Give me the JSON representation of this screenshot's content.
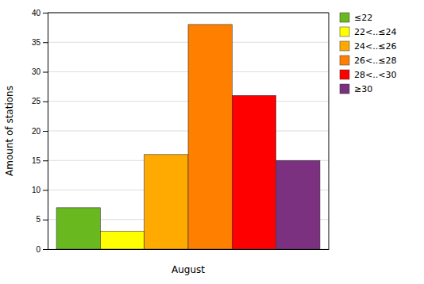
{
  "chart_data": {
    "type": "bar",
    "xlabel": "August",
    "ylabel": "Amount of stations",
    "categories": [
      "≤22",
      "22<..≤24",
      "24<..≤26",
      "26<..≤28",
      "28<..<30",
      "≥30"
    ],
    "values": [
      7,
      3,
      16,
      38,
      26,
      15
    ],
    "colors": [
      "#6ab820",
      "#ffff00",
      "#ffaa00",
      "#ff8000",
      "#ff0000",
      "#7b3080"
    ],
    "ylim": [
      0,
      40
    ],
    "yticks": [
      0,
      5,
      10,
      15,
      20,
      25,
      30,
      35,
      40
    ],
    "grid": true,
    "legend": "upper right",
    "tick_labels": "y"
  }
}
